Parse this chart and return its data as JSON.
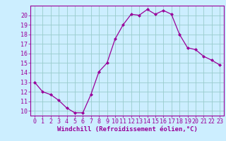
{
  "hours": [
    0,
    1,
    2,
    3,
    4,
    5,
    6,
    7,
    8,
    9,
    10,
    11,
    12,
    13,
    14,
    15,
    16,
    17,
    18,
    19,
    20,
    21,
    22,
    23
  ],
  "values": [
    13,
    12,
    11.7,
    11.1,
    10.3,
    9.8,
    9.8,
    11.7,
    14.1,
    15.0,
    17.5,
    19.0,
    20.1,
    20.0,
    20.6,
    20.1,
    20.5,
    20.1,
    18.0,
    16.6,
    16.4,
    15.7,
    15.3,
    14.8
  ],
  "line_color": "#990099",
  "marker": "D",
  "marker_size": 2,
  "bg_color": "#cceeff",
  "grid_color": "#99cccc",
  "xlabel": "Windchill (Refroidissement éolien,°C)",
  "xlabel_color": "#990099",
  "tick_color": "#990099",
  "axis_line_color": "#990099",
  "ylim": [
    9.5,
    21.0
  ],
  "yticks": [
    10,
    11,
    12,
    13,
    14,
    15,
    16,
    17,
    18,
    19,
    20
  ],
  "xticks": [
    0,
    1,
    2,
    3,
    4,
    5,
    6,
    7,
    8,
    9,
    10,
    11,
    12,
    13,
    14,
    15,
    16,
    17,
    18,
    19,
    20,
    21,
    22,
    23
  ],
  "tick_fontsize": 6.0,
  "xlabel_fontsize": 6.5
}
